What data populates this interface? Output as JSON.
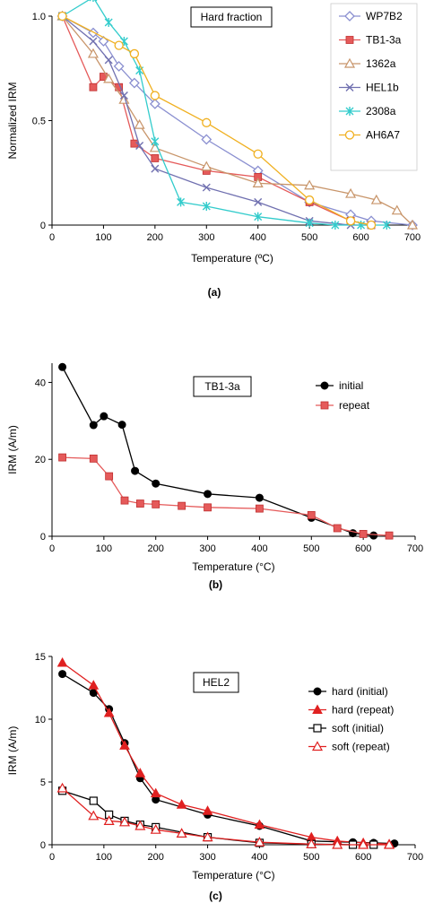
{
  "chart_data": [
    {
      "type": "line",
      "panel_label": "(a)",
      "title": "Hard fraction",
      "xlabel": "Temperature (ºC)",
      "ylabel": "Normalized IRM",
      "xlim": [
        0,
        700
      ],
      "ylim": [
        0,
        1
      ],
      "x_ticks": [
        0,
        100,
        200,
        300,
        400,
        500,
        600,
        700
      ],
      "y_ticks": [
        0,
        0.5,
        1.0
      ],
      "y_tick_labels": [
        "0",
        "0.5",
        "1.0"
      ],
      "legend_position": "right",
      "series": [
        {
          "name": "WP7B2",
          "color": "#8a8fd0",
          "marker": "diamond-open",
          "points": [
            [
              20,
              1.0
            ],
            [
              80,
              0.92
            ],
            [
              100,
              0.88
            ],
            [
              130,
              0.76
            ],
            [
              160,
              0.68
            ],
            [
              200,
              0.58
            ],
            [
              300,
              0.41
            ],
            [
              400,
              0.26
            ],
            [
              500,
              0.11
            ],
            [
              580,
              0.05
            ],
            [
              620,
              0.02
            ],
            [
              700,
              0.0
            ]
          ]
        },
        {
          "name": "TB1-3a",
          "color": "#e55a5a",
          "marker": "square-filled",
          "points": [
            [
              20,
              1.0
            ],
            [
              80,
              0.66
            ],
            [
              100,
              0.71
            ],
            [
              130,
              0.66
            ],
            [
              160,
              0.39
            ],
            [
              200,
              0.32
            ],
            [
              300,
              0.26
            ],
            [
              400,
              0.23
            ],
            [
              500,
              0.11
            ],
            [
              580,
              0.02
            ],
            [
              620,
              0.0
            ]
          ]
        },
        {
          "name": "1362a",
          "color": "#c8956a",
          "marker": "triangle-open",
          "points": [
            [
              20,
              1.0
            ],
            [
              80,
              0.82
            ],
            [
              110,
              0.7
            ],
            [
              140,
              0.6
            ],
            [
              170,
              0.48
            ],
            [
              200,
              0.37
            ],
            [
              300,
              0.28
            ],
            [
              400,
              0.2
            ],
            [
              500,
              0.19
            ],
            [
              580,
              0.15
            ],
            [
              630,
              0.12
            ],
            [
              670,
              0.07
            ],
            [
              700,
              0.0
            ]
          ]
        },
        {
          "name": "HEL1b",
          "color": "#7070b0",
          "marker": "x",
          "points": [
            [
              20,
              1.0
            ],
            [
              80,
              0.88
            ],
            [
              110,
              0.79
            ],
            [
              140,
              0.62
            ],
            [
              170,
              0.38
            ],
            [
              200,
              0.27
            ],
            [
              300,
              0.18
            ],
            [
              400,
              0.11
            ],
            [
              500,
              0.02
            ],
            [
              580,
              0.0
            ],
            [
              620,
              0.0
            ]
          ]
        },
        {
          "name": "2308a",
          "color": "#33cccc",
          "marker": "asterisk",
          "points": [
            [
              20,
              1.0
            ],
            [
              80,
              1.09
            ],
            [
              110,
              0.97
            ],
            [
              140,
              0.88
            ],
            [
              170,
              0.74
            ],
            [
              200,
              0.4
            ],
            [
              250,
              0.11
            ],
            [
              300,
              0.09
            ],
            [
              400,
              0.04
            ],
            [
              500,
              0.01
            ],
            [
              550,
              0.0
            ],
            [
              600,
              0.0
            ],
            [
              650,
              0.0
            ]
          ]
        },
        {
          "name": "AH6A7",
          "color": "#f0b020",
          "marker": "circle-open",
          "points": [
            [
              20,
              1.0
            ],
            [
              130,
              0.86
            ],
            [
              160,
              0.82
            ],
            [
              200,
              0.62
            ],
            [
              300,
              0.49
            ],
            [
              400,
              0.34
            ],
            [
              500,
              0.12
            ],
            [
              580,
              0.02
            ],
            [
              620,
              0.0
            ]
          ]
        }
      ]
    },
    {
      "type": "line",
      "panel_label": "(b)",
      "title": "TB1-3a",
      "xlabel": "Temperature (°C)",
      "ylabel": "IRM (A/m)",
      "xlim": [
        0,
        700
      ],
      "ylim": [
        0,
        45
      ],
      "x_ticks": [
        0,
        100,
        200,
        300,
        400,
        500,
        600,
        700
      ],
      "y_ticks": [
        0,
        20,
        40
      ],
      "legend_position": "top-right",
      "series": [
        {
          "name": "initial",
          "color": "#000000",
          "marker": "circle-filled",
          "points": [
            [
              20,
              44
            ],
            [
              80,
              28.9
            ],
            [
              100,
              31.2
            ],
            [
              135,
              29
            ],
            [
              160,
              17
            ],
            [
              200,
              13.7
            ],
            [
              300,
              11
            ],
            [
              400,
              10
            ],
            [
              500,
              4.8
            ],
            [
              580,
              0.8
            ],
            [
              620,
              0.2
            ]
          ]
        },
        {
          "name": "repeat",
          "color": "#e55a5a",
          "marker": "square-filled",
          "points": [
            [
              20,
              20.5
            ],
            [
              80,
              20.2
            ],
            [
              110,
              15.6
            ],
            [
              140,
              9.3
            ],
            [
              170,
              8.5
            ],
            [
              200,
              8.3
            ],
            [
              250,
              7.9
            ],
            [
              300,
              7.5
            ],
            [
              400,
              7.2
            ],
            [
              500,
              5.5
            ],
            [
              550,
              2.1
            ],
            [
              600,
              0.6
            ],
            [
              650,
              0.2
            ]
          ]
        }
      ]
    },
    {
      "type": "line",
      "panel_label": "(c)",
      "title": "HEL2",
      "xlabel": "Temperature (°C)",
      "ylabel": "IRM (A/m)",
      "xlim": [
        0,
        700
      ],
      "ylim": [
        0,
        15
      ],
      "x_ticks": [
        0,
        100,
        200,
        300,
        400,
        500,
        600,
        700
      ],
      "y_ticks": [
        0,
        5,
        10,
        15
      ],
      "legend_position": "top-right",
      "series": [
        {
          "name": "hard (initial)",
          "color": "#000000",
          "marker": "circle-filled",
          "points": [
            [
              20,
              13.6
            ],
            [
              80,
              12.1
            ],
            [
              110,
              10.8
            ],
            [
              140,
              8.1
            ],
            [
              170,
              5.3
            ],
            [
              200,
              3.6
            ],
            [
              300,
              2.4
            ],
            [
              400,
              1.5
            ],
            [
              500,
              0.3
            ],
            [
              580,
              0.2
            ],
            [
              620,
              0.15
            ],
            [
              660,
              0.1
            ]
          ]
        },
        {
          "name": "hard (repeat)",
          "color": "#e02020",
          "marker": "triangle-filled",
          "points": [
            [
              20,
              14.5
            ],
            [
              80,
              12.7
            ],
            [
              110,
              10.5
            ],
            [
              140,
              7.9
            ],
            [
              170,
              5.7
            ],
            [
              200,
              4.1
            ],
            [
              250,
              3.2
            ],
            [
              300,
              2.7
            ],
            [
              400,
              1.6
            ],
            [
              500,
              0.6
            ],
            [
              550,
              0.3
            ],
            [
              600,
              0.15
            ],
            [
              650,
              0.05
            ]
          ]
        },
        {
          "name": "soft (initial)",
          "color": "#000000",
          "marker": "square-open",
          "points": [
            [
              20,
              4.3
            ],
            [
              80,
              3.5
            ],
            [
              110,
              2.4
            ],
            [
              140,
              1.9
            ],
            [
              170,
              1.6
            ],
            [
              200,
              1.4
            ],
            [
              300,
              0.6
            ],
            [
              400,
              0.15
            ],
            [
              500,
              0.05
            ],
            [
              580,
              0.0
            ],
            [
              620,
              0.0
            ]
          ]
        },
        {
          "name": "soft (repeat)",
          "color": "#e02020",
          "marker": "triangle-open",
          "points": [
            [
              20,
              4.5
            ],
            [
              80,
              2.3
            ],
            [
              110,
              1.9
            ],
            [
              140,
              1.8
            ],
            [
              170,
              1.5
            ],
            [
              200,
              1.2
            ],
            [
              250,
              0.9
            ],
            [
              300,
              0.6
            ],
            [
              400,
              0.2
            ],
            [
              500,
              0.05
            ],
            [
              550,
              0.0
            ],
            [
              600,
              0.0
            ],
            [
              650,
              0.0
            ]
          ]
        }
      ]
    }
  ]
}
